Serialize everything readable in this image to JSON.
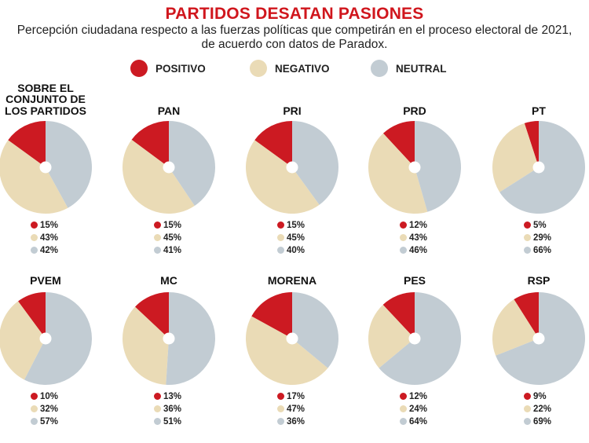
{
  "chart_data": {
    "type": "pie",
    "title": "PARTIDOS DESATAN PASIONES",
    "subtitle": "Percepción ciudadana respecto a las fuerzas políticas que competirán en el proceso electoral de 2021, de acuerdo con datos de Paradox.",
    "legend": [
      {
        "key": "positivo",
        "label": "POSITIVO",
        "color": "#cc1a22"
      },
      {
        "key": "negativo",
        "label": "NEGATIVO",
        "color": "#eadbb6"
      },
      {
        "key": "neutral",
        "label": "NEUTRAL",
        "color": "#c2ccd3"
      }
    ],
    "panels": [
      {
        "name": "SOBRE EL CONJUNTO DE LOS PARTIDOS",
        "lines": [
          "SOBRE EL",
          "CONJUNTO DE",
          "LOS PARTIDOS"
        ],
        "positivo": 15,
        "negativo": 43,
        "neutral": 42,
        "labels": [
          "15%",
          "43%",
          "42%"
        ]
      },
      {
        "name": "PAN",
        "lines": [
          "PAN"
        ],
        "positivo": 15,
        "negativo": 45,
        "neutral": 41,
        "labels": [
          "15%",
          "45%",
          "41%"
        ]
      },
      {
        "name": "PRI",
        "lines": [
          "PRI"
        ],
        "positivo": 15,
        "negativo": 45,
        "neutral": 40,
        "labels": [
          "15%",
          "45%",
          "40%"
        ]
      },
      {
        "name": "PRD",
        "lines": [
          "PRD"
        ],
        "positivo": 12,
        "negativo": 43,
        "neutral": 46,
        "labels": [
          "12%",
          "43%",
          "46%"
        ]
      },
      {
        "name": "PT",
        "lines": [
          "PT"
        ],
        "positivo": 5,
        "negativo": 29,
        "neutral": 66,
        "labels": [
          "5%",
          "29%",
          "66%"
        ]
      },
      {
        "name": "PVEM",
        "lines": [
          "PVEM"
        ],
        "positivo": 10,
        "negativo": 32,
        "neutral": 57,
        "labels": [
          "10%",
          "32%",
          "57%"
        ]
      },
      {
        "name": "MC",
        "lines": [
          "MC"
        ],
        "positivo": 13,
        "negativo": 36,
        "neutral": 51,
        "labels": [
          "13%",
          "36%",
          "51%"
        ]
      },
      {
        "name": "MORENA",
        "lines": [
          "MORENA"
        ],
        "positivo": 17,
        "negativo": 47,
        "neutral": 36,
        "labels": [
          "17%",
          "47%",
          "36%"
        ]
      },
      {
        "name": "PES",
        "lines": [
          "PES"
        ],
        "positivo": 12,
        "negativo": 24,
        "neutral": 64,
        "labels": [
          "12%",
          "24%",
          "64%"
        ]
      },
      {
        "name": "RSP",
        "lines": [
          "RSP"
        ],
        "positivo": 9,
        "negativo": 22,
        "neutral": 69,
        "labels": [
          "9%",
          "22%",
          "69%"
        ]
      }
    ]
  }
}
